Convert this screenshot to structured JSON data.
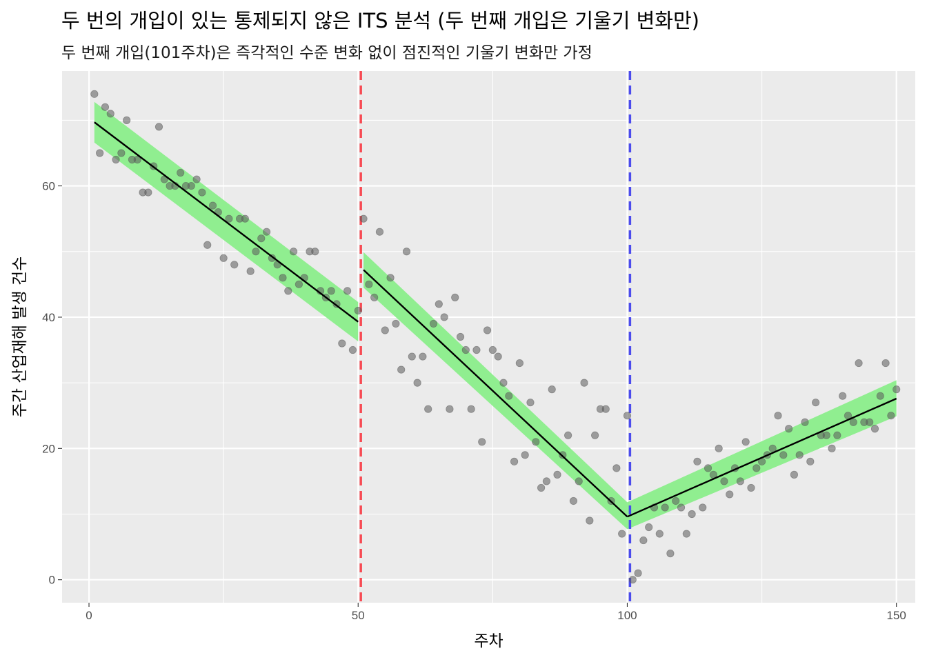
{
  "chart_data": {
    "type": "scatter",
    "title": "두 번의 개입이 있는 통제되지 않은 ITS 분석 (두 번째 개입은 기울기 변화만)",
    "subtitle": "두 번째 개입(101주차)은 즉각적인 수준 변화 없이 점진적인 기울기 변화만 가정",
    "xlabel": "주차",
    "ylabel": "주간 산업재해 발생 건수",
    "xlim": [
      -5,
      153.5
    ],
    "ylim": [
      -3.5,
      77.5
    ],
    "x_ticks": [
      0,
      50,
      100,
      150
    ],
    "x_tick_labels": [
      "0",
      "50",
      "100",
      "150"
    ],
    "y_ticks": [
      0,
      20,
      40,
      60
    ],
    "y_tick_labels": [
      "0",
      "20",
      "40",
      "60"
    ],
    "grid": true,
    "background": "#EBEBEB",
    "points": {
      "color": "#595959",
      "x": [
        1,
        2,
        3,
        4,
        5,
        6,
        7,
        8,
        9,
        10,
        11,
        12,
        13,
        14,
        15,
        16,
        17,
        18,
        19,
        20,
        21,
        22,
        23,
        24,
        25,
        26,
        27,
        28,
        29,
        30,
        31,
        32,
        33,
        34,
        35,
        36,
        37,
        38,
        39,
        40,
        41,
        42,
        43,
        44,
        45,
        46,
        47,
        48,
        49,
        50,
        51,
        52,
        53,
        54,
        55,
        56,
        57,
        58,
        59,
        60,
        61,
        62,
        63,
        64,
        65,
        66,
        67,
        68,
        69,
        70,
        71,
        72,
        73,
        74,
        75,
        76,
        77,
        78,
        79,
        80,
        81,
        82,
        83,
        84,
        85,
        86,
        87,
        88,
        89,
        90,
        91,
        92,
        93,
        94,
        95,
        96,
        97,
        98,
        99,
        100,
        101,
        102,
        103,
        104,
        105,
        106,
        107,
        108,
        109,
        110,
        111,
        112,
        113,
        114,
        115,
        116,
        117,
        118,
        119,
        120,
        121,
        122,
        123,
        124,
        125,
        126,
        127,
        128,
        129,
        130,
        131,
        132,
        133,
        134,
        135,
        136,
        137,
        138,
        139,
        140,
        141,
        142,
        143,
        144,
        145,
        146,
        147,
        148,
        149,
        150
      ],
      "y": [
        74,
        65,
        72,
        71,
        64,
        65,
        70,
        64,
        64,
        59,
        59,
        63,
        69,
        61,
        60,
        60,
        62,
        60,
        60,
        61,
        59,
        51,
        57,
        56,
        49,
        55,
        48,
        55,
        55,
        47,
        50,
        52,
        53,
        49,
        48,
        46,
        44,
        50,
        45,
        46,
        50,
        50,
        44,
        43,
        44,
        42,
        36,
        44,
        35,
        41,
        55,
        45,
        43,
        53,
        38,
        46,
        39,
        32,
        50,
        34,
        30,
        34,
        26,
        39,
        42,
        40,
        26,
        43,
        37,
        35,
        26,
        35,
        21,
        38,
        35,
        34,
        30,
        28,
        18,
        33,
        19,
        27,
        21,
        14,
        15,
        29,
        16,
        19,
        22,
        12,
        15,
        30,
        9,
        22,
        26,
        26,
        12,
        17,
        7,
        25,
        0,
        1,
        6,
        8,
        11,
        7,
        11,
        4,
        12,
        11,
        7,
        10,
        18,
        11,
        17,
        16,
        20,
        15,
        13,
        17,
        15,
        21,
        14,
        17,
        18,
        19,
        20,
        25,
        19,
        23,
        16,
        19,
        24,
        18,
        27,
        22,
        22,
        20,
        22,
        28,
        25,
        24,
        33,
        24,
        24,
        23,
        28,
        33,
        25,
        29
      ]
    },
    "fit_line": {
      "color": "#000000",
      "segments": [
        {
          "x": [
            1,
            50
          ],
          "y": [
            69.7,
            39.3
          ]
        },
        {
          "x": [
            51,
            100
          ],
          "y": [
            47.2,
            9.6
          ]
        },
        {
          "x": [
            100,
            150
          ],
          "y": [
            9.6,
            27.6
          ]
        }
      ]
    },
    "confidence_band": {
      "color": "#90EE90",
      "segments": [
        {
          "x": [
            1,
            50
          ],
          "upper": [
            72.8,
            42.3
          ],
          "lower": [
            66.6,
            36.3
          ]
        },
        {
          "x": [
            51,
            100
          ],
          "upper": [
            49.9,
            11.8
          ],
          "lower": [
            44.5,
            7.7
          ]
        },
        {
          "x": [
            100,
            150
          ],
          "upper": [
            11.8,
            30.4
          ],
          "lower": [
            7.7,
            24.9
          ]
        }
      ]
    },
    "vlines": [
      {
        "x": 50.5,
        "color": "#F8424B",
        "style": "dashed"
      },
      {
        "x": 100.5,
        "color": "#4343EE",
        "style": "dashed"
      }
    ]
  }
}
